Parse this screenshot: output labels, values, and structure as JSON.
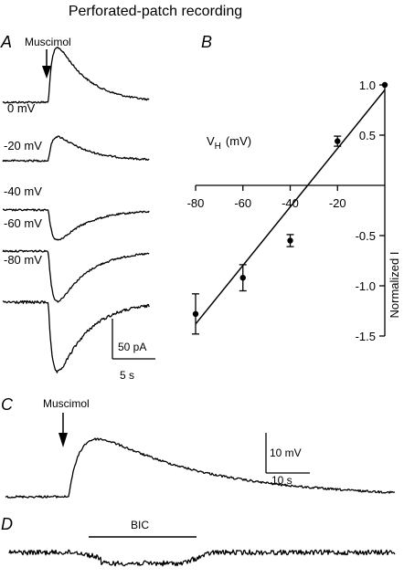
{
  "title": "Perforated-patch recording",
  "panels": {
    "a": "A",
    "b": "B",
    "c": "C",
    "d": "D"
  },
  "panel_a": {
    "drug_label": "Muscimol",
    "traces": [
      {
        "label": "0 mV",
        "peak": 1.0
      },
      {
        "label": "-20 mV",
        "peak": 0.44
      },
      {
        "label": "-40 mV",
        "peak": -0.55
      },
      {
        "label": "-60 mV",
        "peak": -0.92
      },
      {
        "label": "-80 mV",
        "peak": -1.28
      }
    ],
    "scalebar": {
      "current": "50 pA",
      "time": "5 s"
    }
  },
  "panel_c": {
    "drug_label": "Muscimol",
    "scalebar": {
      "voltage": "10 mV",
      "time": "10 s"
    }
  },
  "panel_d": {
    "bar_label": "BIC"
  },
  "chart_data": {
    "type": "scatter",
    "xlabel": "V",
    "xlabel_sub": "H",
    "xlabel_unit": "(mV)",
    "ylabel": "Normalized I",
    "xlim": [
      -80,
      0
    ],
    "ylim": [
      -1.5,
      1.0
    ],
    "x_ticks": [
      "-80",
      "-60",
      "-40",
      "-20"
    ],
    "y_ticks": [
      "1.0",
      "0.5",
      "-0.5",
      "-1.0",
      "-1.5"
    ],
    "points": [
      {
        "x": -80,
        "y": -1.28,
        "err": 0.2
      },
      {
        "x": -60,
        "y": -0.92,
        "err": 0.13
      },
      {
        "x": -40,
        "y": -0.55,
        "err": 0.06
      },
      {
        "x": -20,
        "y": 0.44,
        "err": 0.05
      },
      {
        "x": 0,
        "y": 1.0,
        "err": 0
      }
    ],
    "fit_line": {
      "x": [
        -80,
        0
      ],
      "y": [
        -1.38,
        0.95
      ]
    }
  }
}
